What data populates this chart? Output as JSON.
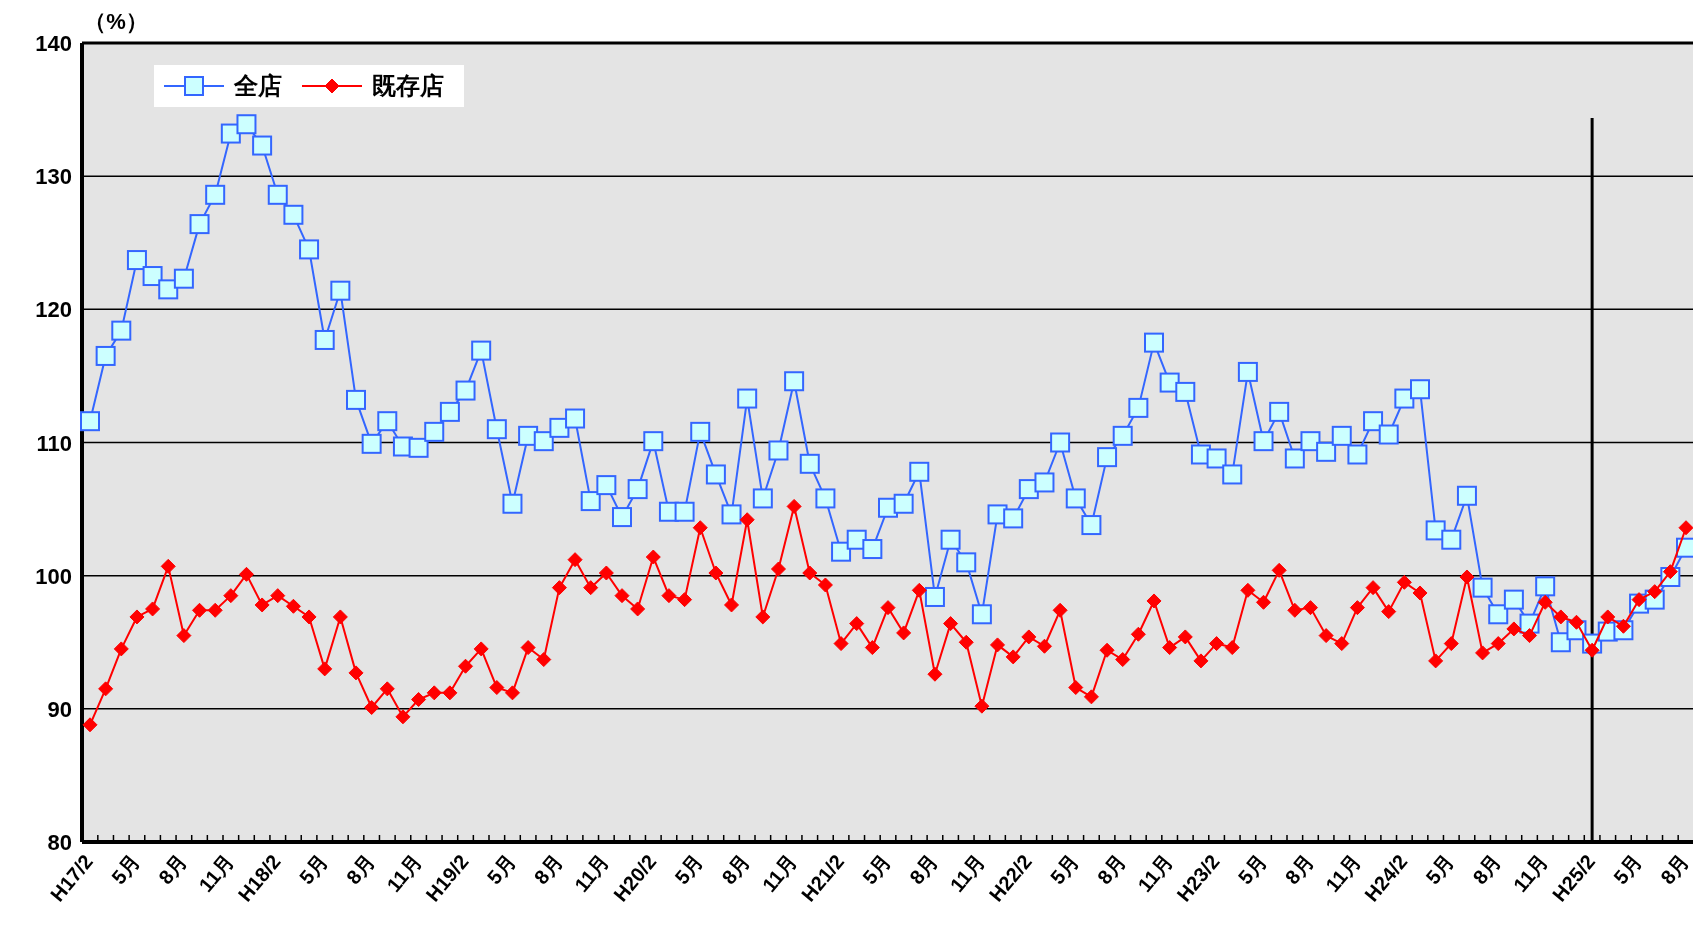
{
  "chart_data": {
    "type": "line",
    "ylabel": "（%）",
    "categories": [
      "H17/2",
      null,
      null,
      "5月",
      null,
      null,
      "8月",
      null,
      null,
      "11月",
      null,
      null,
      "H18/2",
      null,
      null,
      "5月",
      null,
      null,
      "8月",
      null,
      null,
      "11月",
      null,
      null,
      "H19/2",
      null,
      null,
      "5月",
      null,
      null,
      "8月",
      null,
      null,
      "11月",
      null,
      null,
      "H20/2",
      null,
      null,
      "5月",
      null,
      null,
      "8月",
      null,
      null,
      "11月",
      null,
      null,
      "H21/2",
      null,
      null,
      "5月",
      null,
      null,
      "8月",
      null,
      null,
      "11月",
      null,
      null,
      "H22/2",
      null,
      null,
      "5月",
      null,
      null,
      "8月",
      null,
      null,
      "11月",
      null,
      null,
      "H23/2",
      null,
      null,
      "5月",
      null,
      null,
      "8月",
      null,
      null,
      "11月",
      null,
      null,
      "H24/2",
      null,
      null,
      "5月",
      null,
      null,
      "8月",
      null,
      null,
      "11月",
      null,
      null,
      "H25/2",
      null,
      null,
      "5月",
      null,
      null,
      "8月"
    ],
    "series": [
      {
        "name": "全店",
        "color": "#3366ff",
        "marker": "square",
        "values": [
          111.6,
          116.5,
          118.4,
          123.7,
          122.5,
          121.5,
          122.3,
          126.4,
          128.6,
          133.2,
          133.9,
          132.3,
          128.6,
          127.1,
          124.5,
          117.7,
          121.4,
          113.2,
          109.9,
          111.6,
          109.7,
          109.6,
          110.8,
          112.3,
          113.9,
          116.9,
          111.0,
          105.4,
          110.5,
          110.1,
          111.1,
          111.8,
          105.6,
          106.8,
          104.4,
          106.5,
          110.1,
          104.8,
          104.8,
          110.8,
          107.6,
          104.6,
          113.3,
          105.8,
          109.4,
          114.6,
          108.4,
          105.8,
          101.8,
          102.7,
          102.0,
          105.1,
          105.4,
          107.8,
          98.4,
          102.7,
          101.0,
          97.1,
          104.6,
          104.3,
          106.5,
          107.0,
          110.0,
          105.8,
          103.8,
          108.9,
          110.5,
          112.6,
          117.5,
          114.5,
          113.8,
          109.1,
          108.8,
          107.6,
          115.3,
          110.1,
          112.3,
          108.8,
          110.1,
          109.3,
          110.5,
          109.1,
          111.6,
          110.6,
          113.3,
          114.0,
          103.4,
          102.7,
          106.0,
          99.1,
          97.1,
          98.2,
          96.4,
          99.2,
          95.0,
          95.9,
          94.9,
          95.8,
          95.9,
          97.9,
          98.2,
          99.9,
          102.1
        ]
      },
      {
        "name": "既存店",
        "color": "#ff0000",
        "marker": "diamond",
        "values": [
          88.8,
          91.5,
          94.5,
          96.9,
          97.5,
          100.7,
          95.5,
          97.4,
          97.4,
          98.5,
          100.1,
          97.8,
          98.5,
          97.7,
          96.9,
          93.0,
          96.9,
          92.7,
          90.1,
          91.5,
          89.4,
          90.7,
          91.2,
          91.2,
          93.2,
          94.5,
          91.6,
          91.2,
          94.6,
          93.7,
          99.1,
          101.2,
          99.1,
          100.2,
          98.5,
          97.5,
          101.4,
          98.5,
          98.2,
          103.6,
          100.2,
          97.8,
          104.2,
          96.9,
          100.5,
          105.2,
          100.2,
          99.3,
          94.9,
          96.4,
          94.6,
          97.6,
          95.7,
          98.9,
          92.6,
          96.4,
          95.0,
          90.2,
          94.8,
          93.9,
          95.4,
          94.7,
          97.4,
          91.6,
          90.9,
          94.4,
          93.7,
          95.6,
          98.1,
          94.6,
          95.4,
          93.6,
          94.9,
          94.6,
          98.9,
          98.0,
          100.4,
          97.4,
          97.6,
          95.5,
          94.9,
          97.6,
          99.1,
          97.3,
          99.5,
          98.7,
          93.6,
          94.9,
          99.9,
          94.2,
          94.9,
          96.0,
          95.5,
          98.0,
          96.9,
          96.5,
          94.4,
          96.9,
          96.2,
          98.2,
          98.8,
          100.3,
          103.6
        ]
      }
    ],
    "ylim": [
      80,
      140
    ],
    "yticks": [
      80,
      90,
      100,
      110,
      120,
      130,
      140
    ],
    "grid": "y",
    "legend": "top left",
    "ref_lines": [
      {
        "axis": "x",
        "value": "H25/2",
        "color": "#000000"
      }
    ]
  }
}
